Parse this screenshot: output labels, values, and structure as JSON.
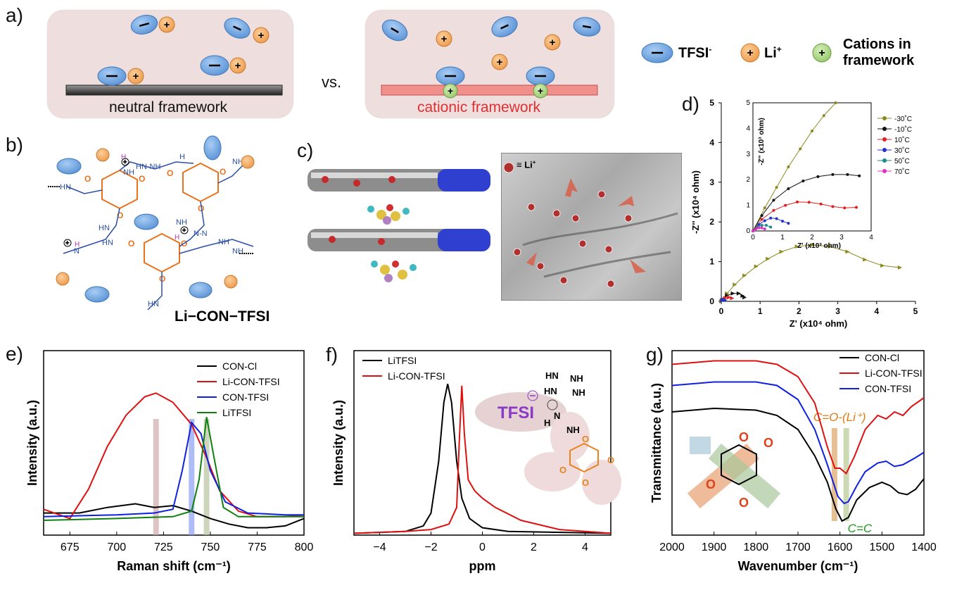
{
  "panel_labels": {
    "a": "a)",
    "b": "b)",
    "c": "c)",
    "d": "d)",
    "e": "e)",
    "f": "f)",
    "g": "g)"
  },
  "panel_a": {
    "neutral_label": "neutral framework",
    "cationic_label": "cationic framework",
    "vs": "vs.",
    "legend": {
      "tfsi": "TFSI",
      "tfsi_sup": "-",
      "li": "Li",
      "li_sup": "+",
      "cations": "Cations in",
      "cations2": "framework"
    },
    "colors": {
      "tfsi": "#6fa5e0",
      "li": "#f2a35c",
      "cation": "#a6d27a",
      "neutral_bar": "#444444",
      "cationic_bar": "#f08a86",
      "cationic_text": "#e03030"
    }
  },
  "panel_b": {
    "caption": "Li−CON−TFSI"
  },
  "panel_c": {
    "li_label": "≡ Li",
    "li_sup": "+"
  },
  "chart_data": [
    {
      "id": "d",
      "type": "scatter",
      "xlabel": "Z' (x10⁴ ohm)",
      "ylabel": "-Z'' (x10⁴ ohm)",
      "xlim": [
        0,
        5
      ],
      "ylim": [
        0,
        5
      ],
      "x_ticks": [
        "0",
        "1",
        "2",
        "3",
        "4",
        "5"
      ],
      "y_ticks": [
        "0",
        "1",
        "2",
        "3",
        "4",
        "5"
      ],
      "series": [
        {
          "name": "-30˚C",
          "color": "#8a8a1e",
          "points": [
            [
              0,
              0
            ],
            [
              0.15,
              0.2
            ],
            [
              0.35,
              0.42
            ],
            [
              0.6,
              0.65
            ],
            [
              0.9,
              0.88
            ],
            [
              1.2,
              1.07
            ],
            [
              1.55,
              1.25
            ],
            [
              1.95,
              1.38
            ],
            [
              2.35,
              1.42
            ],
            [
              2.8,
              1.38
            ],
            [
              3.25,
              1.25
            ],
            [
              3.7,
              1.05
            ],
            [
              4.15,
              0.9
            ],
            [
              4.6,
              0.85
            ]
          ]
        },
        {
          "name": "-10˚C",
          "color": "#111111",
          "points": [
            [
              0.05,
              0.05
            ],
            [
              0.15,
              0.15
            ],
            [
              0.3,
              0.2
            ],
            [
              0.45,
              0.2
            ],
            [
              0.55,
              0.14
            ],
            [
              0.6,
              0.1
            ]
          ]
        },
        {
          "name": "10˚C",
          "color": "#e02020",
          "points": [
            [
              0.03,
              0.03
            ],
            [
              0.1,
              0.08
            ],
            [
              0.2,
              0.1
            ],
            [
              0.28,
              0.08
            ]
          ]
        },
        {
          "name": "30˚C",
          "color": "#2233cc",
          "points": [
            [
              0.02,
              0.02
            ],
            [
              0.06,
              0.04
            ],
            [
              0.1,
              0.03
            ]
          ]
        }
      ],
      "inset": {
        "xlabel": "Z' (x10³ ohm)",
        "ylabel": "-Z'' (x10³ ohm)",
        "xlim": [
          0,
          4
        ],
        "ylim": [
          0,
          5
        ],
        "x_ticks": [
          "0",
          "1",
          "2",
          "3",
          "4"
        ],
        "y_ticks": [
          "0",
          "1",
          "2",
          "3",
          "4",
          "5"
        ],
        "series": [
          {
            "name": "-30˚C",
            "color": "#8a8a1e",
            "points": [
              [
                0,
                0
              ],
              [
                0.4,
                0.9
              ],
              [
                0.8,
                1.7
              ],
              [
                1.2,
                2.5
              ],
              [
                1.6,
                3.2
              ],
              [
                2.0,
                3.9
              ],
              [
                2.4,
                4.5
              ],
              [
                2.8,
                5.0
              ]
            ]
          },
          {
            "name": "-10˚C",
            "color": "#111111",
            "points": [
              [
                0,
                0
              ],
              [
                0.3,
                0.6
              ],
              [
                0.7,
                1.2
              ],
              [
                1.2,
                1.65
              ],
              [
                1.7,
                1.95
              ],
              [
                2.2,
                2.12
              ],
              [
                2.7,
                2.2
              ],
              [
                3.2,
                2.2
              ],
              [
                3.6,
                2.15
              ]
            ]
          },
          {
            "name": "10˚C",
            "color": "#e02020",
            "points": [
              [
                0,
                0
              ],
              [
                0.3,
                0.45
              ],
              [
                0.7,
                0.8
              ],
              [
                1.1,
                1.0
              ],
              [
                1.5,
                1.13
              ],
              [
                1.9,
                1.12
              ],
              [
                2.3,
                1.05
              ],
              [
                2.7,
                0.95
              ],
              [
                3.1,
                0.9
              ],
              [
                3.5,
                0.92
              ]
            ]
          },
          {
            "name": "30˚C",
            "color": "#2233cc",
            "points": [
              [
                0,
                0
              ],
              [
                0.2,
                0.25
              ],
              [
                0.4,
                0.4
              ],
              [
                0.6,
                0.5
              ],
              [
                0.8,
                0.48
              ],
              [
                1.0,
                0.38
              ],
              [
                1.2,
                0.3
              ]
            ]
          },
          {
            "name": "50˚C",
            "color": "#1a8a8a",
            "points": [
              [
                0,
                0
              ],
              [
                0.15,
                0.15
              ],
              [
                0.3,
                0.22
              ],
              [
                0.45,
                0.22
              ],
              [
                0.6,
                0.15
              ]
            ]
          },
          {
            "name": "70˚C",
            "color": "#e030c0",
            "points": [
              [
                0,
                0
              ],
              [
                0.1,
                0.08
              ],
              [
                0.2,
                0.12
              ],
              [
                0.3,
                0.12
              ],
              [
                0.4,
                0.08
              ]
            ]
          }
        ]
      }
    },
    {
      "id": "e",
      "type": "line",
      "xlabel": "Raman shift (cm⁻¹)",
      "ylabel": "Intensity (a.u.)",
      "xlim": [
        661,
        800
      ],
      "x_ticks": [
        675,
        700,
        725,
        750,
        775,
        800
      ],
      "highlight_bands": [
        {
          "x": 721,
          "color": "#cfaaaa"
        },
        {
          "x": 740,
          "color": "#8aa0f0"
        },
        {
          "x": 748,
          "color": "#b8c4a0"
        }
      ],
      "series": [
        {
          "name": "CON-Cl",
          "color": "#000000",
          "points": [
            [
              661,
              0.12
            ],
            [
              680,
              0.12
            ],
            [
              695,
              0.15
            ],
            [
              710,
              0.17
            ],
            [
              720,
              0.15
            ],
            [
              730,
              0.16
            ],
            [
              740,
              0.13
            ],
            [
              750,
              0.09
            ],
            [
              760,
              0.06
            ],
            [
              770,
              0.04
            ],
            [
              780,
              0.04
            ],
            [
              790,
              0.05
            ],
            [
              800,
              0.09
            ]
          ]
        },
        {
          "name": "Li-CON-TFSI",
          "color": "#e01010",
          "points": [
            [
              661,
              0.14
            ],
            [
              675,
              0.09
            ],
            [
              685,
              0.25
            ],
            [
              695,
              0.48
            ],
            [
              705,
              0.65
            ],
            [
              715,
              0.75
            ],
            [
              721,
              0.77
            ],
            [
              730,
              0.72
            ],
            [
              740,
              0.6
            ],
            [
              748,
              0.42
            ],
            [
              755,
              0.24
            ],
            [
              765,
              0.13
            ],
            [
              775,
              0.1
            ],
            [
              790,
              0.1
            ],
            [
              800,
              0.11
            ]
          ]
        },
        {
          "name": "CON-TFSI",
          "color": "#1020e0",
          "points": [
            [
              661,
              0.1
            ],
            [
              700,
              0.11
            ],
            [
              720,
              0.12
            ],
            [
              730,
              0.14
            ],
            [
              735,
              0.35
            ],
            [
              740,
              0.61
            ],
            [
              745,
              0.55
            ],
            [
              750,
              0.35
            ],
            [
              758,
              0.18
            ],
            [
              770,
              0.12
            ],
            [
              790,
              0.11
            ],
            [
              800,
              0.11
            ]
          ]
        },
        {
          "name": "LiTFSI",
          "color": "#108010",
          "points": [
            [
              661,
              0.08
            ],
            [
              700,
              0.09
            ],
            [
              730,
              0.1
            ],
            [
              740,
              0.13
            ],
            [
              744,
              0.3
            ],
            [
              748,
              0.64
            ],
            [
              752,
              0.42
            ],
            [
              757,
              0.15
            ],
            [
              765,
              0.1
            ],
            [
              790,
              0.1
            ],
            [
              800,
              0.1
            ]
          ]
        }
      ]
    },
    {
      "id": "f",
      "type": "line",
      "xlabel": "ppm",
      "ylabel": "Intensity (a.u.)",
      "xlim": [
        -5,
        5
      ],
      "x_ticks": [
        -4,
        -2,
        0,
        2,
        4
      ],
      "series": [
        {
          "name": "LiTFSI",
          "color": "#000000",
          "points": [
            [
              -5,
              0.01
            ],
            [
              -3,
              0.02
            ],
            [
              -2.3,
              0.05
            ],
            [
              -2,
              0.12
            ],
            [
              -1.7,
              0.4
            ],
            [
              -1.5,
              0.72
            ],
            [
              -1.35,
              0.82
            ],
            [
              -1.2,
              0.72
            ],
            [
              -1.0,
              0.4
            ],
            [
              -0.8,
              0.2
            ],
            [
              -0.5,
              0.09
            ],
            [
              0,
              0.04
            ],
            [
              1,
              0.02
            ],
            [
              5,
              0.01
            ]
          ]
        },
        {
          "name": "Li-CON-TFSI",
          "color": "#e01010",
          "points": [
            [
              -5,
              0.01
            ],
            [
              -3,
              0.02
            ],
            [
              -2,
              0.03
            ],
            [
              -1.3,
              0.06
            ],
            [
              -1.0,
              0.15
            ],
            [
              -0.9,
              0.5
            ],
            [
              -0.8,
              0.81
            ],
            [
              -0.7,
              0.55
            ],
            [
              -0.55,
              0.3
            ],
            [
              -0.3,
              0.24
            ],
            [
              0,
              0.2
            ],
            [
              0.5,
              0.15
            ],
            [
              1.5,
              0.08
            ],
            [
              3,
              0.03
            ],
            [
              5,
              0.01
            ]
          ]
        }
      ],
      "annotation": "TFSI"
    },
    {
      "id": "g",
      "type": "line",
      "xlabel": "Wavenumber (cm⁻¹)",
      "ylabel": "Transmittance (a.u.)",
      "xlim": [
        2000,
        1400
      ],
      "x_ticks": [
        2000,
        1900,
        1800,
        1700,
        1600,
        1500,
        1400
      ],
      "highlight_bands": [
        {
          "x": 1613,
          "color": "#e0b07a",
          "label": "C=O-(Li⁺)",
          "label_color": "#e07a10"
        },
        {
          "x": 1585,
          "color": "#c0d0a0",
          "label": "C=C",
          "label_color": "#1a9a1a"
        }
      ],
      "series": [
        {
          "name": "CON-Cl",
          "color": "#000000",
          "points": [
            [
              2000,
              0.7
            ],
            [
              1900,
              0.72
            ],
            [
              1800,
              0.71
            ],
            [
              1750,
              0.68
            ],
            [
              1700,
              0.6
            ],
            [
              1660,
              0.45
            ],
            [
              1630,
              0.3
            ],
            [
              1610,
              0.15
            ],
            [
              1595,
              0.08
            ],
            [
              1580,
              0.1
            ],
            [
              1560,
              0.2
            ],
            [
              1530,
              0.27
            ],
            [
              1500,
              0.3
            ],
            [
              1480,
              0.28
            ],
            [
              1460,
              0.24
            ],
            [
              1440,
              0.23
            ],
            [
              1420,
              0.26
            ],
            [
              1400,
              0.32
            ]
          ]
        },
        {
          "name": "Li-CON-TFSI",
          "color": "#e01010",
          "points": [
            [
              2000,
              0.97
            ],
            [
              1900,
              0.99
            ],
            [
              1800,
              0.99
            ],
            [
              1750,
              0.97
            ],
            [
              1700,
              0.9
            ],
            [
              1660,
              0.75
            ],
            [
              1630,
              0.5
            ],
            [
              1612,
              0.38
            ],
            [
              1600,
              0.38
            ],
            [
              1585,
              0.35
            ],
            [
              1565,
              0.45
            ],
            [
              1540,
              0.6
            ],
            [
              1510,
              0.68
            ],
            [
              1490,
              0.66
            ],
            [
              1470,
              0.7
            ],
            [
              1450,
              0.68
            ],
            [
              1430,
              0.73
            ],
            [
              1400,
              0.78
            ]
          ]
        },
        {
          "name": "CON-TFSI",
          "color": "#1020e0",
          "points": [
            [
              2000,
              0.85
            ],
            [
              1900,
              0.87
            ],
            [
              1800,
              0.87
            ],
            [
              1750,
              0.85
            ],
            [
              1700,
              0.77
            ],
            [
              1660,
              0.6
            ],
            [
              1630,
              0.4
            ],
            [
              1605,
              0.22
            ],
            [
              1590,
              0.18
            ],
            [
              1580,
              0.19
            ],
            [
              1560,
              0.28
            ],
            [
              1540,
              0.36
            ],
            [
              1510,
              0.41
            ],
            [
              1490,
              0.42
            ],
            [
              1470,
              0.39
            ],
            [
              1450,
              0.4
            ],
            [
              1420,
              0.44
            ],
            [
              1400,
              0.47
            ]
          ]
        }
      ]
    }
  ]
}
